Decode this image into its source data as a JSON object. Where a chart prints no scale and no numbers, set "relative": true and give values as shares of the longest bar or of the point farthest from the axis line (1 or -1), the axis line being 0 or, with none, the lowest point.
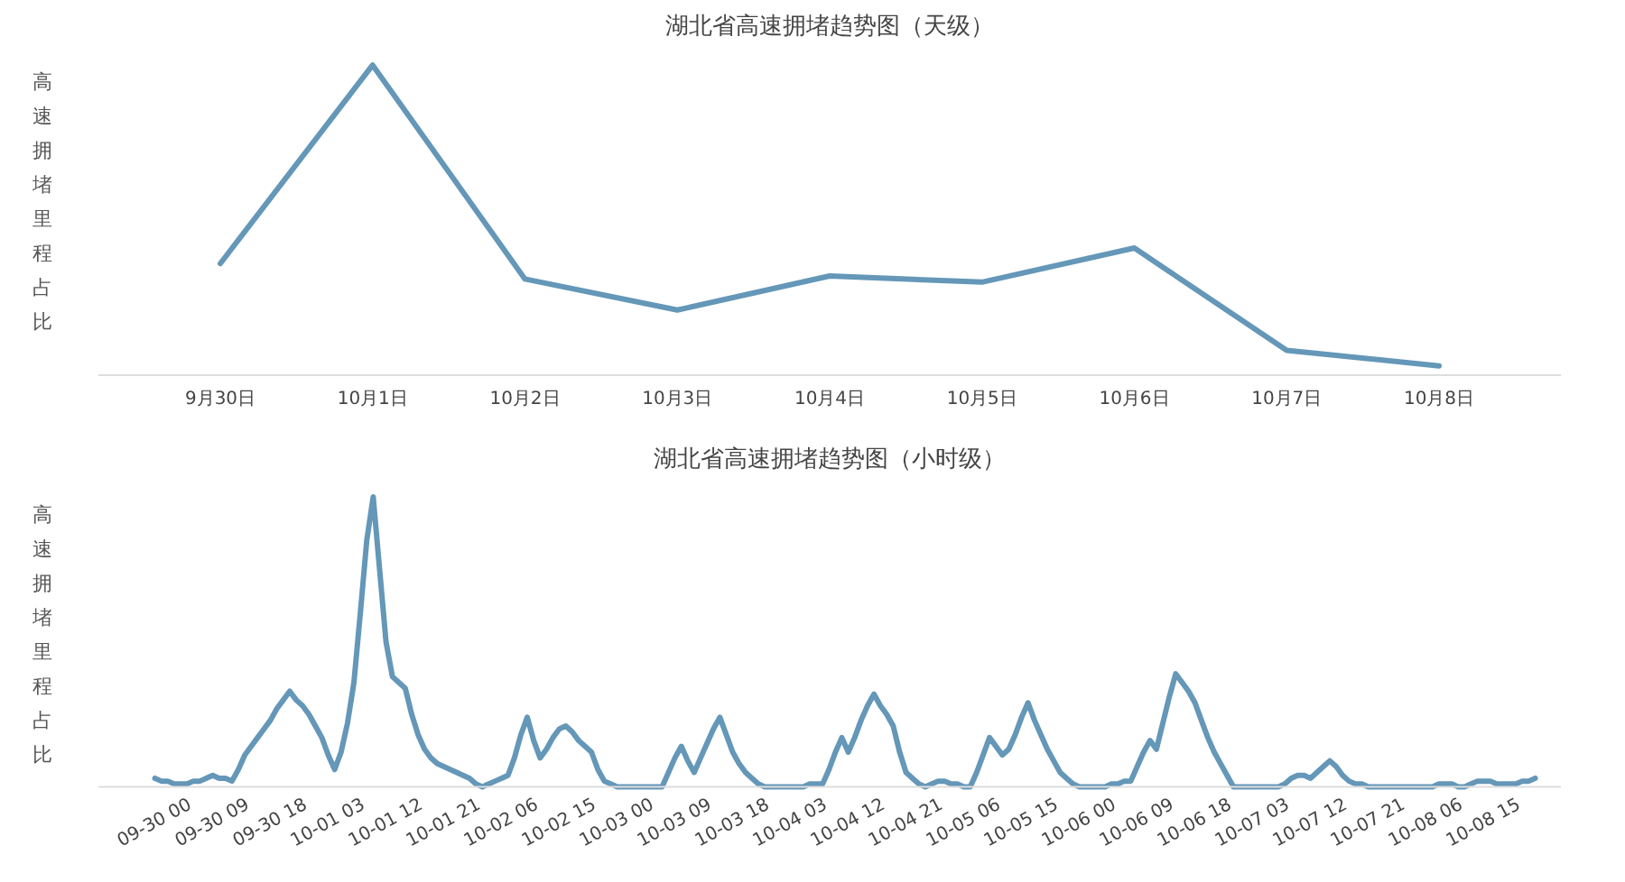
{
  "chart_data": [
    {
      "type": "line",
      "title": "湖北省高速拥堵趋势图（天级）",
      "ylabel": "高速拥堵里程占比",
      "relative": true,
      "categories": [
        "9月30日",
        "10月1日",
        "10月2日",
        "10月3日",
        "10月4日",
        "10月5日",
        "10月6日",
        "10月7日",
        "10月8日"
      ],
      "series": [
        {
          "color": "#6497b8",
          "values": [
            0.36,
            1,
            0.31,
            0.21,
            0.32,
            0.3,
            0.41,
            0.08,
            0.03
          ]
        }
      ]
    },
    {
      "type": "line",
      "title": "湖北省高速拥堵趋势图（小时级）",
      "ylabel": "高速拥堵里程占比",
      "relative": true,
      "categories": [
        "09-30 00",
        null,
        null,
        null,
        null,
        null,
        null,
        null,
        null,
        "09-30 09",
        null,
        null,
        null,
        null,
        null,
        null,
        null,
        null,
        "09-30 18",
        null,
        null,
        null,
        null,
        null,
        null,
        null,
        null,
        "10-01 03",
        null,
        null,
        null,
        null,
        null,
        null,
        null,
        null,
        "10-01 12",
        null,
        null,
        null,
        null,
        null,
        null,
        null,
        null,
        "10-01 21",
        null,
        null,
        null,
        null,
        null,
        null,
        null,
        null,
        "10-02 06",
        null,
        null,
        null,
        null,
        null,
        null,
        null,
        null,
        "10-02 15",
        null,
        null,
        null,
        null,
        null,
        null,
        null,
        null,
        "10-03 00",
        null,
        null,
        null,
        null,
        null,
        null,
        null,
        null,
        "10-03 09",
        null,
        null,
        null,
        null,
        null,
        null,
        null,
        null,
        "10-03 18",
        null,
        null,
        null,
        null,
        null,
        null,
        null,
        null,
        "10-04 03",
        null,
        null,
        null,
        null,
        null,
        null,
        null,
        null,
        "10-04 12",
        null,
        null,
        null,
        null,
        null,
        null,
        null,
        null,
        "10-04 21",
        null,
        null,
        null,
        null,
        null,
        null,
        null,
        null,
        "10-05 06",
        null,
        null,
        null,
        null,
        null,
        null,
        null,
        null,
        "10-05 15",
        null,
        null,
        null,
        null,
        null,
        null,
        null,
        null,
        "10-06 00",
        null,
        null,
        null,
        null,
        null,
        null,
        null,
        null,
        "10-06 09",
        null,
        null,
        null,
        null,
        null,
        null,
        null,
        null,
        "10-06 18",
        null,
        null,
        null,
        null,
        null,
        null,
        null,
        null,
        "10-07 03",
        null,
        null,
        null,
        null,
        null,
        null,
        null,
        null,
        "10-07 12",
        null,
        null,
        null,
        null,
        null,
        null,
        null,
        null,
        "10-07 21",
        null,
        null,
        null,
        null,
        null,
        null,
        null,
        null,
        "10-08 06",
        null,
        null,
        null,
        null,
        null,
        null,
        null,
        null,
        "10-08 15",
        null,
        null,
        null,
        null,
        null,
        null,
        null,
        null
      ],
      "series": [
        {
          "color": "#6497b8",
          "values": [
            0.03,
            0.02,
            0.02,
            0.01,
            0.01,
            0.01,
            0.02,
            0.02,
            0.03,
            0.04,
            0.03,
            0.03,
            0.02,
            0.06,
            0.11,
            0.14,
            0.17,
            0.2,
            0.23,
            0.27,
            0.3,
            0.33,
            0.3,
            0.28,
            0.25,
            0.21,
            0.17,
            0.11,
            0.06,
            0.12,
            0.22,
            0.36,
            0.6,
            0.85,
            1,
            0.75,
            0.5,
            0.38,
            0.36,
            0.34,
            0.25,
            0.18,
            0.13,
            0.1,
            0.08,
            0.07,
            0.06,
            0.05,
            0.04,
            0.03,
            0.01,
            0,
            0.01,
            0.02,
            0.03,
            0.04,
            0.1,
            0.18,
            0.24,
            0.16,
            0.1,
            0.13,
            0.17,
            0.2,
            0.21,
            0.19,
            0.16,
            0.14,
            0.12,
            0.06,
            0.02,
            0.01,
            0,
            0,
            0,
            0,
            0,
            0,
            0,
            0,
            0.05,
            0.1,
            0.14,
            0.09,
            0.05,
            0.1,
            0.15,
            0.2,
            0.24,
            0.18,
            0.12,
            0.08,
            0.05,
            0.03,
            0.01,
            0,
            0,
            0,
            0,
            0,
            0,
            0,
            0.01,
            0.01,
            0.01,
            0.06,
            0.12,
            0.17,
            0.12,
            0.17,
            0.23,
            0.28,
            0.32,
            0.28,
            0.25,
            0.21,
            0.12,
            0.05,
            0.03,
            0.01,
            0,
            0.01,
            0.02,
            0.02,
            0.01,
            0.01,
            0,
            0,
            0.05,
            0.11,
            0.17,
            0.14,
            0.11,
            0.13,
            0.18,
            0.24,
            0.29,
            0.23,
            0.18,
            0.13,
            0.09,
            0.05,
            0.03,
            0.01,
            0,
            0,
            0,
            0,
            0,
            0.01,
            0.01,
            0.02,
            0.02,
            0.07,
            0.12,
            0.16,
            0.13,
            0.22,
            0.31,
            0.39,
            0.36,
            0.33,
            0.29,
            0.23,
            0.17,
            0.12,
            0.08,
            0.04,
            0,
            0,
            0,
            0,
            0,
            0,
            0,
            0,
            0.01,
            0.03,
            0.04,
            0.04,
            0.03,
            0.05,
            0.07,
            0.09,
            0.07,
            0.04,
            0.02,
            0.01,
            0.01,
            0,
            0,
            0,
            0,
            0,
            0,
            0,
            0,
            0,
            0,
            0,
            0.01,
            0.01,
            0.01,
            0,
            0,
            0.01,
            0.02,
            0.02,
            0.02,
            0.01,
            0.01,
            0.01,
            0.01,
            0.02,
            0.02,
            0.03
          ]
        }
      ]
    }
  ]
}
